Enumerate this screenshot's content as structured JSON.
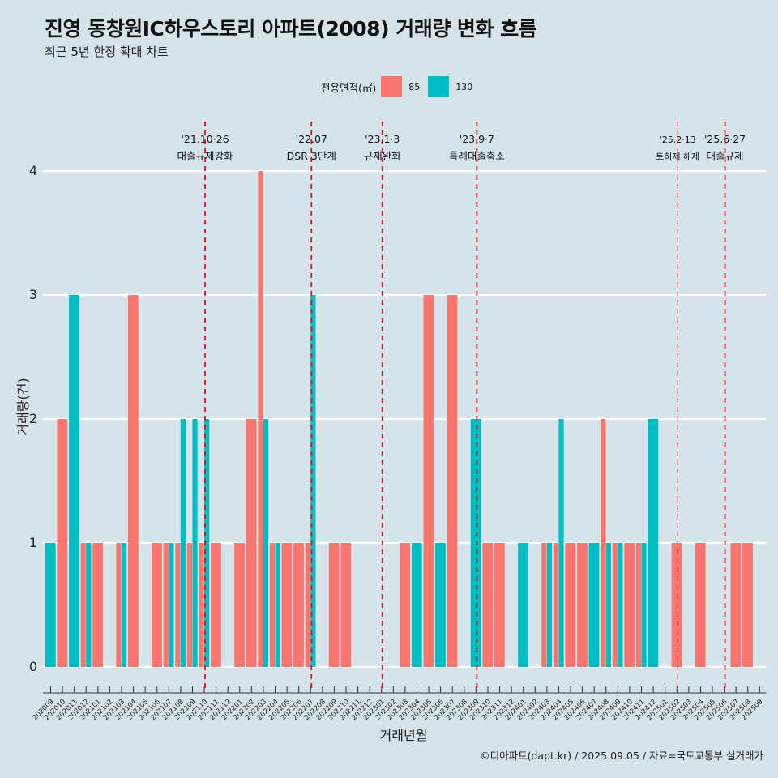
{
  "title": "진영 동창원IC하우스토리 아파트(2008) 거래량 변화 흐름",
  "subtitle": "최근 5년 한정 확대 차트",
  "legend": {
    "title": "전용면적(㎡)",
    "items": [
      {
        "label": "85",
        "color": "#f8766d"
      },
      {
        "label": "130",
        "color": "#00bfc4"
      }
    ]
  },
  "caption": "©디아파트(dapt.kr) / 2025.09.05 / 자료=국토교통부 실거래가",
  "chart_data": {
    "type": "bar",
    "xlabel": "거래년월",
    "ylabel": "거래량(건)",
    "ylim": [
      0,
      4
    ],
    "yticks": [
      0,
      1,
      2,
      3,
      4
    ],
    "categories": [
      "202009",
      "202010",
      "202011",
      "202012",
      "202101",
      "202102",
      "202103",
      "202104",
      "202105",
      "202106",
      "202107",
      "202108",
      "202109",
      "202110",
      "202111",
      "202112",
      "202201",
      "202202",
      "202203",
      "202204",
      "202205",
      "202206",
      "202207",
      "202208",
      "202209",
      "202210",
      "202211",
      "202212",
      "202301",
      "202302",
      "202303",
      "202304",
      "202305",
      "202306",
      "202307",
      "202308",
      "202309",
      "202310",
      "202311",
      "202312",
      "202401",
      "202402",
      "202403",
      "202404",
      "202405",
      "202406",
      "202407",
      "202408",
      "202409",
      "202410",
      "202411",
      "202412",
      "202501",
      "202502",
      "202503",
      "202504",
      "202505",
      "202506",
      "202507",
      "202508",
      "202509"
    ],
    "series": [
      {
        "name": "85",
        "color": "#f8766d",
        "values": [
          0,
          2,
          0,
          1,
          1,
          0,
          1,
          3,
          0,
          1,
          1,
          1,
          1,
          1,
          1,
          0,
          1,
          2,
          4,
          1,
          1,
          1,
          1,
          0,
          1,
          1,
          0,
          0,
          0,
          0,
          1,
          0,
          3,
          0,
          3,
          0,
          0,
          1,
          1,
          0,
          0,
          0,
          1,
          1,
          1,
          1,
          0,
          2,
          1,
          1,
          1,
          0,
          0,
          1,
          0,
          1,
          0,
          0,
          1,
          1,
          0
        ]
      },
      {
        "name": "130",
        "color": "#00bfc4",
        "values": [
          1,
          0,
          3,
          1,
          0,
          0,
          1,
          0,
          0,
          0,
          1,
          2,
          2,
          2,
          0,
          0,
          0,
          0,
          2,
          1,
          0,
          0,
          3,
          0,
          0,
          0,
          0,
          0,
          0,
          0,
          0,
          1,
          0,
          1,
          0,
          0,
          2,
          0,
          0,
          0,
          1,
          0,
          1,
          2,
          0,
          0,
          1,
          1,
          1,
          0,
          1,
          2,
          0,
          0,
          0,
          0,
          0,
          0,
          0,
          0,
          0
        ]
      }
    ],
    "annotations": [
      {
        "category": "202110",
        "date": "'21.10·26",
        "label": "대출규제강화"
      },
      {
        "category": "202207",
        "date": "'22.07",
        "label": "DSR 3단계"
      },
      {
        "category": "202301",
        "date": "'23.1·3",
        "label": "규제완화"
      },
      {
        "category": "202309",
        "date": "'23.9·7",
        "label": "특례대출축소"
      },
      {
        "category": "202502",
        "date": "'25.2·13",
        "label": "토허제 해제"
      },
      {
        "category": "202506",
        "date": "'25.6·27",
        "label": "대출규제"
      }
    ],
    "grid": true,
    "legend_position": "top"
  }
}
